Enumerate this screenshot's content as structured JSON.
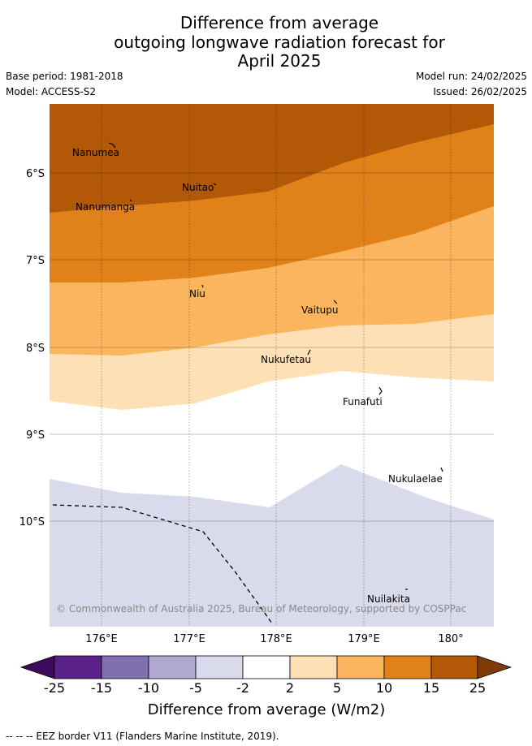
{
  "title": {
    "line1": "Difference from average",
    "line2": "outgoing longwave radiation forecast for",
    "line3": "April 2025"
  },
  "meta": {
    "base_period": "Base period: 1981-2018",
    "model": "Model: ACCESS-S2",
    "model_run": "Model run: 24/02/2025",
    "issued": "Issued: 26/02/2025"
  },
  "map": {
    "lat_ticks": [
      "6°S",
      "7°S",
      "8°S",
      "9°S",
      "10°S"
    ],
    "lon_ticks": [
      "176°E",
      "177°E",
      "178°E",
      "179°E",
      "180°"
    ],
    "places": [
      "Nanumea",
      "Nuitao",
      "Nanumanga",
      "Niu",
      "Vaitupu",
      "Nukufetau",
      "Funafuti",
      "Nukulaelae",
      "Nuilakita"
    ],
    "copyright": "© Commonwealth of Australia 2025, Bureau of Meteorology, supported by COSPPac",
    "colors": {
      "lt_-25": "#3d0a5c",
      "-25_-15": "#5a2189",
      "-15_-10": "#8070ad",
      "-10_-5": "#b1a9d2",
      "-5_-2": "#d9daeb",
      "-2_2": "#ffffff",
      "2_5": "#fde0b5",
      "5_10": "#fbb55f",
      "10_15": "#e08219",
      "15_25": "#b35806",
      "gt_25": "#7f3b08"
    }
  },
  "colorbar": {
    "ticks": [
      "-25",
      "-15",
      "-10",
      "-5",
      "-2",
      "2",
      "5",
      "10",
      "15",
      "25"
    ],
    "label": "Difference from average (W/m2)"
  },
  "footnote": "-- -- -- EEZ border V11 (Flanders Marine Institute, 2019)."
}
